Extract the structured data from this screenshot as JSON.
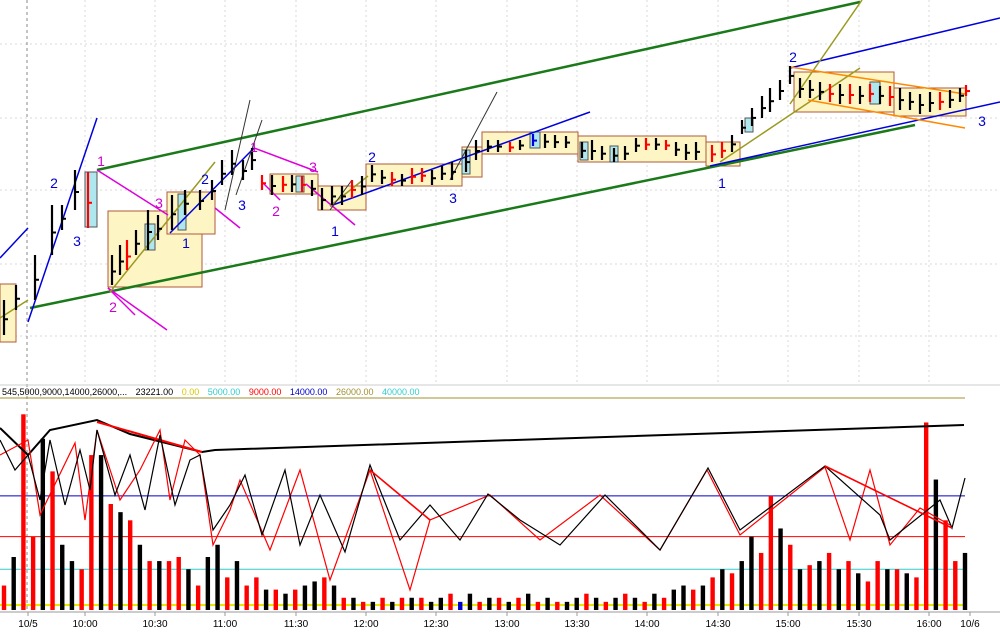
{
  "header": {
    "params": "545,5000,9000,14000,26000,...",
    "current": "23221.00",
    "levels": [
      {
        "label": "0.00",
        "color": "#e8e800"
      },
      {
        "label": "5000.00",
        "color": "#33cccc"
      },
      {
        "label": "9000.00",
        "color": "#ff0000"
      },
      {
        "label": "14000.00",
        "color": "#0000cc"
      },
      {
        "label": "26000.00",
        "color": "#a09030"
      },
      {
        "label": "40000.00",
        "color": "#33cccc"
      }
    ]
  },
  "wave_labels": [
    {
      "text": "2",
      "color": "#0000cc"
    },
    {
      "text": "3",
      "color": "#0000cc"
    },
    {
      "text": "1",
      "color": "#cc00cc"
    },
    {
      "text": "2",
      "color": "#cc00cc"
    },
    {
      "text": "3",
      "color": "#cc00cc"
    },
    {
      "text": "1",
      "color": "#0000cc"
    },
    {
      "text": "2",
      "color": "#0000cc"
    },
    {
      "text": "3",
      "color": "#0000cc"
    },
    {
      "text": "1",
      "color": "#cc00cc"
    },
    {
      "text": "2",
      "color": "#cc00cc"
    },
    {
      "text": "3",
      "color": "#cc00cc"
    },
    {
      "text": "1",
      "color": "#0000cc"
    },
    {
      "text": "2",
      "color": "#0000cc"
    },
    {
      "text": "3",
      "color": "#0000cc"
    },
    {
      "text": "1",
      "color": "#0000cc"
    },
    {
      "text": "2",
      "color": "#0000cc"
    },
    {
      "text": "3",
      "color": "#0000cc"
    }
  ],
  "chart_data": {
    "type": "bar",
    "title": "",
    "x_tick_labels": [
      "10/5",
      "10:00",
      "10:30",
      "11:00",
      "11:30",
      "12:00",
      "12:30",
      "13:00",
      "13:30",
      "14:00",
      "14:30",
      "15:00",
      "15:30",
      "16:00",
      "10/6"
    ],
    "volume_series": [
      {
        "name": "up",
        "color": "#000000"
      },
      {
        "name": "down",
        "color": "#ff0000"
      },
      {
        "name": "neutral",
        "color": "#0000cc"
      }
    ],
    "volume_bars": [
      {
        "v": 3000,
        "c": "down"
      },
      {
        "v": 6500,
        "c": "up"
      },
      {
        "v": 24000,
        "c": "down"
      },
      {
        "v": 9000,
        "c": "down"
      },
      {
        "v": 21000,
        "c": "up"
      },
      {
        "v": 17000,
        "c": "down"
      },
      {
        "v": 8000,
        "c": "up"
      },
      {
        "v": 6000,
        "c": "up"
      },
      {
        "v": 5000,
        "c": "down"
      },
      {
        "v": 19000,
        "c": "down"
      },
      {
        "v": 19000,
        "c": "up"
      },
      {
        "v": 13000,
        "c": "down"
      },
      {
        "v": 12000,
        "c": "up"
      },
      {
        "v": 11000,
        "c": "down"
      },
      {
        "v": 8000,
        "c": "up"
      },
      {
        "v": 6000,
        "c": "down"
      },
      {
        "v": 6000,
        "c": "up"
      },
      {
        "v": 6000,
        "c": "down"
      },
      {
        "v": 6500,
        "c": "down"
      },
      {
        "v": 5000,
        "c": "up"
      },
      {
        "v": 3000,
        "c": "down"
      },
      {
        "v": 6500,
        "c": "up"
      },
      {
        "v": 8000,
        "c": "up"
      },
      {
        "v": 4000,
        "c": "down"
      },
      {
        "v": 6000,
        "c": "up"
      },
      {
        "v": 3000,
        "c": "down"
      },
      {
        "v": 4000,
        "c": "down"
      },
      {
        "v": 2500,
        "c": "up"
      },
      {
        "v": 2500,
        "c": "down"
      },
      {
        "v": 2000,
        "c": "up"
      },
      {
        "v": 2500,
        "c": "down"
      },
      {
        "v": 3000,
        "c": "up"
      },
      {
        "v": 3500,
        "c": "up"
      },
      {
        "v": 4000,
        "c": "down"
      },
      {
        "v": 3000,
        "c": "up"
      },
      {
        "v": 1500,
        "c": "down"
      },
      {
        "v": 1500,
        "c": "up"
      },
      {
        "v": 1000,
        "c": "down"
      },
      {
        "v": 1000,
        "c": "up"
      },
      {
        "v": 1500,
        "c": "down"
      },
      {
        "v": 1000,
        "c": "up"
      },
      {
        "v": 1500,
        "c": "down"
      },
      {
        "v": 1500,
        "c": "up"
      },
      {
        "v": 1500,
        "c": "down"
      },
      {
        "v": 1000,
        "c": "up"
      },
      {
        "v": 1500,
        "c": "up"
      },
      {
        "v": 2000,
        "c": "down"
      },
      {
        "v": 1000,
        "c": "neutral"
      },
      {
        "v": 2000,
        "c": "up"
      },
      {
        "v": 1000,
        "c": "down"
      },
      {
        "v": 1500,
        "c": "up"
      },
      {
        "v": 1500,
        "c": "down"
      },
      {
        "v": 1000,
        "c": "up"
      },
      {
        "v": 1500,
        "c": "down"
      },
      {
        "v": 2000,
        "c": "up"
      },
      {
        "v": 1000,
        "c": "down"
      },
      {
        "v": 1500,
        "c": "up"
      },
      {
        "v": 1000,
        "c": "down"
      },
      {
        "v": 1000,
        "c": "up"
      },
      {
        "v": 1500,
        "c": "up"
      },
      {
        "v": 2000,
        "c": "down"
      },
      {
        "v": 1500,
        "c": "up"
      },
      {
        "v": 1000,
        "c": "down"
      },
      {
        "v": 1500,
        "c": "up"
      },
      {
        "v": 2000,
        "c": "down"
      },
      {
        "v": 1500,
        "c": "up"
      },
      {
        "v": 1000,
        "c": "down"
      },
      {
        "v": 2000,
        "c": "up"
      },
      {
        "v": 1500,
        "c": "down"
      },
      {
        "v": 2500,
        "c": "up"
      },
      {
        "v": 3000,
        "c": "up"
      },
      {
        "v": 2500,
        "c": "down"
      },
      {
        "v": 3000,
        "c": "up"
      },
      {
        "v": 4000,
        "c": "down"
      },
      {
        "v": 5000,
        "c": "up"
      },
      {
        "v": 4500,
        "c": "down"
      },
      {
        "v": 6000,
        "c": "up"
      },
      {
        "v": 9000,
        "c": "up"
      },
      {
        "v": 7000,
        "c": "down"
      },
      {
        "v": 14000,
        "c": "down"
      },
      {
        "v": 10000,
        "c": "up"
      },
      {
        "v": 8000,
        "c": "down"
      },
      {
        "v": 5000,
        "c": "up"
      },
      {
        "v": 5500,
        "c": "down"
      },
      {
        "v": 6000,
        "c": "up"
      },
      {
        "v": 7000,
        "c": "down"
      },
      {
        "v": 5000,
        "c": "up"
      },
      {
        "v": 6000,
        "c": "down"
      },
      {
        "v": 4500,
        "c": "up"
      },
      {
        "v": 3500,
        "c": "down"
      },
      {
        "v": 6000,
        "c": "down"
      },
      {
        "v": 5000,
        "c": "up"
      },
      {
        "v": 5000,
        "c": "down"
      },
      {
        "v": 4500,
        "c": "up"
      },
      {
        "v": 4000,
        "c": "down"
      },
      {
        "v": 23000,
        "c": "down"
      },
      {
        "v": 16000,
        "c": "up"
      },
      {
        "v": 11000,
        "c": "down"
      },
      {
        "v": 6000,
        "c": "down"
      },
      {
        "v": 7000,
        "c": "up"
      }
    ],
    "ylim": [
      0,
      26000
    ],
    "levels": [
      5000,
      9000,
      14000,
      26000
    ]
  }
}
